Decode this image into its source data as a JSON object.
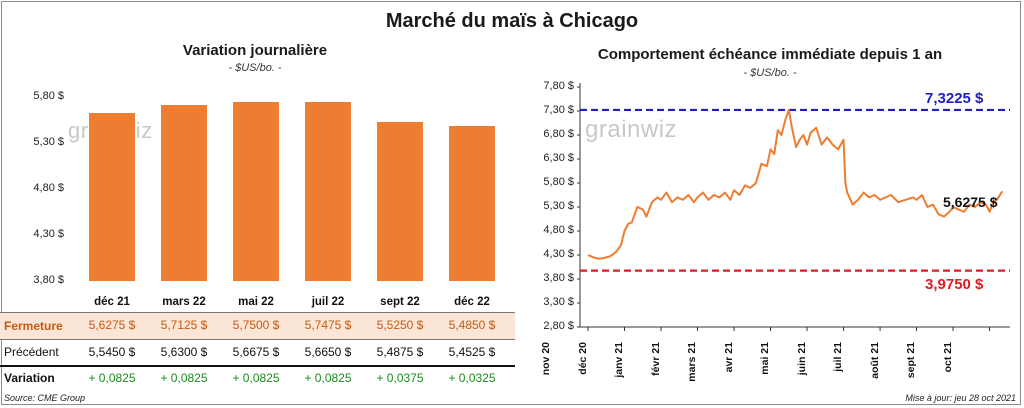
{
  "title": "Marché du maïs à Chicago",
  "watermark": "grainwiz",
  "source": "Source: CME Group",
  "updated": "Mise à jour: jeu 28 oct 2021",
  "colors": {
    "bar": "#ed7d31",
    "line": "#ed7d31",
    "high": "#1f1fbf",
    "low": "#e01b24",
    "positive": "#1e8c1e",
    "highlight": "#fbe5d6"
  },
  "left": {
    "title": "Variation journalière",
    "unit": "- $US/bo. -",
    "table": {
      "row_labels": [
        "Fermeture",
        "Précédent",
        "Variation"
      ],
      "fermeture": [
        "5,6275  $",
        "5,7125  $",
        "5,7500  $",
        "5,7475  $",
        "5,5250  $",
        "5,4850  $"
      ],
      "precedent": [
        "5,5450  $",
        "5,6300  $",
        "5,6675  $",
        "5,6650  $",
        "5,4875  $",
        "5,4525  $"
      ],
      "variation": [
        "+ 0,0825",
        "+ 0,0825",
        "+ 0,0825",
        "+ 0,0825",
        "+ 0,0375",
        "+ 0,0325"
      ]
    }
  },
  "right": {
    "title": "Comportement  échéance immédiate depuis 1 an",
    "unit": "- $US/bo. -",
    "high_label": "7,3225 $",
    "low_label": "3,9750 $",
    "last_label": "5,6275 $"
  },
  "chart_data": [
    {
      "type": "bar",
      "title": "Variation journalière",
      "ylabel": "- $US/bo. -",
      "categories": [
        "déc 21",
        "mars 22",
        "mai 22",
        "juil 22",
        "sept 22",
        "déc 22"
      ],
      "values": [
        5.6275,
        5.7125,
        5.75,
        5.7475,
        5.525,
        5.485
      ],
      "ylim": [
        3.8,
        5.8
      ],
      "yticks": [
        "3,80 $",
        "4,30 $",
        "4,80 $",
        "5,30 $",
        "5,80 $"
      ],
      "ytick_values": [
        3.8,
        4.3,
        4.8,
        5.3,
        5.8
      ],
      "grid": false
    },
    {
      "type": "line",
      "title": "Comportement  échéance immédiate depuis 1 an",
      "ylabel": "- $US/bo. -",
      "ylim": [
        2.8,
        7.8
      ],
      "yticks": [
        "2,80 $",
        "3,30 $",
        "3,80 $",
        "4,30 $",
        "4,80 $",
        "5,30 $",
        "5,80 $",
        "6,30 $",
        "6,80 $",
        "7,30 $",
        "7,80 $"
      ],
      "ytick_values": [
        2.8,
        3.3,
        3.8,
        4.3,
        4.8,
        5.3,
        5.8,
        6.3,
        6.8,
        7.3,
        7.8
      ],
      "xticks": [
        "nov 20",
        "déc 20",
        "janv 21",
        "févr 21",
        "mars 21",
        "avr 21",
        "mai 21",
        "juin 21",
        "juil 21",
        "août 21",
        "sept 21",
        "oct 21"
      ],
      "reference_lines": [
        {
          "value": 7.3225,
          "label": "7,3225 $",
          "style": "dashed",
          "color": "#1f1fbf"
        },
        {
          "value": 3.975,
          "label": "3,9750 $",
          "style": "dashed",
          "color": "#e01b24"
        }
      ],
      "series": [
        {
          "x": [
            0,
            0.15,
            0.3,
            0.45,
            0.6,
            0.75,
            0.9,
            1.0,
            1.1,
            1.2,
            1.35,
            1.5,
            1.6,
            1.75,
            1.9,
            2.0,
            2.15,
            2.3,
            2.45,
            2.6,
            2.75,
            2.9,
            3.0,
            3.15,
            3.3,
            3.45,
            3.6,
            3.75,
            3.9,
            4.0,
            4.15,
            4.3,
            4.45,
            4.6,
            4.75,
            4.9,
            5.0,
            5.1,
            5.2,
            5.3,
            5.4,
            5.5,
            5.6,
            5.7,
            5.8,
            5.9,
            6.0,
            6.1,
            6.25,
            6.4,
            6.55,
            6.7,
            6.85,
            7.0,
            7.05,
            7.1,
            7.25,
            7.4,
            7.55,
            7.7,
            7.85,
            8.0,
            8.15,
            8.3,
            8.5,
            8.7,
            8.9,
            9.0,
            9.15,
            9.3,
            9.45,
            9.6,
            9.75,
            9.9,
            10.0,
            10.15,
            10.3,
            10.45,
            10.6,
            10.75,
            10.9,
            11.0,
            11.1,
            11.2,
            11.35
          ],
          "values": [
            4.3,
            4.25,
            4.22,
            4.24,
            4.27,
            4.35,
            4.5,
            4.8,
            4.95,
            4.98,
            5.3,
            5.25,
            5.1,
            5.4,
            5.5,
            5.45,
            5.6,
            5.4,
            5.5,
            5.45,
            5.55,
            5.4,
            5.5,
            5.6,
            5.45,
            5.55,
            5.5,
            5.6,
            5.45,
            5.65,
            5.55,
            5.75,
            5.7,
            5.8,
            6.2,
            6.15,
            6.5,
            6.4,
            6.9,
            6.8,
            7.1,
            7.32,
            6.9,
            6.55,
            6.7,
            6.8,
            6.6,
            6.85,
            6.95,
            6.6,
            6.75,
            6.6,
            6.5,
            6.7,
            5.8,
            5.6,
            5.35,
            5.45,
            5.6,
            5.5,
            5.55,
            5.45,
            5.5,
            5.55,
            5.4,
            5.45,
            5.5,
            5.45,
            5.55,
            5.3,
            5.35,
            5.15,
            5.1,
            5.2,
            5.3,
            5.25,
            5.2,
            5.35,
            5.3,
            5.4,
            5.35,
            5.2,
            5.4,
            5.45,
            5.6275
          ]
        }
      ]
    }
  ]
}
